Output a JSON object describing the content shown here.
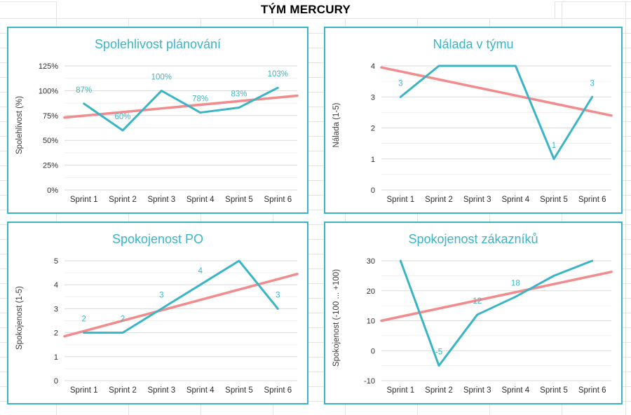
{
  "page": {
    "title": "TÝM MERCURY"
  },
  "colors": {
    "accent_teal": "#3ab5c6",
    "trend_pink": "#f28b8b",
    "grid_major": "#dadada",
    "grid_minor": "#efefef",
    "sheet_grid": "#e4e4e4"
  },
  "chart_data": [
    {
      "type": "line",
      "title": "Spolehlivost plánování",
      "ylabel": "Spolehlivost (%)",
      "categories": [
        "Sprint 1",
        "Sprint 2",
        "Sprint 3",
        "Sprint 4",
        "Sprint 5",
        "Sprint 6"
      ],
      "axis_range": [
        0,
        125
      ],
      "minor_step": 12.5,
      "yticks": [
        {
          "value": 0,
          "label": "0%"
        },
        {
          "value": 25,
          "label": "25%"
        },
        {
          "value": 50,
          "label": "50%"
        },
        {
          "value": 75,
          "label": "75%"
        },
        {
          "value": 100,
          "label": "100%"
        },
        {
          "value": 125,
          "label": "125%"
        }
      ],
      "series": [
        {
          "role": "values",
          "values": [
            87,
            60,
            100,
            78,
            83,
            103
          ],
          "labels": [
            "87%",
            "60%",
            "100%",
            "78%",
            "83%",
            "103%"
          ]
        },
        {
          "role": "trend",
          "start": 73,
          "end": 95
        }
      ],
      "legend": "none",
      "grid": "on"
    },
    {
      "type": "line",
      "title": "Nálada v týmu",
      "ylabel": "Nálada (1-5)",
      "categories": [
        "Sprint 1",
        "Sprint 2",
        "Sprint 3",
        "Sprint 4",
        "Sprint 5",
        "Sprint 6"
      ],
      "axis_range": [
        0,
        4
      ],
      "minor_step": 0.5,
      "yticks": [
        {
          "value": 0,
          "label": "0"
        },
        {
          "value": 1,
          "label": "1"
        },
        {
          "value": 2,
          "label": "2"
        },
        {
          "value": 3,
          "label": "3"
        },
        {
          "value": 4,
          "label": "4"
        }
      ],
      "series": [
        {
          "role": "values",
          "values": [
            3,
            4,
            4,
            4,
            1,
            3
          ],
          "labels": [
            "3",
            null,
            null,
            null,
            "1",
            "3"
          ]
        },
        {
          "role": "trend",
          "start": 3.95,
          "end": 2.4
        }
      ],
      "legend": "none",
      "grid": "on"
    },
    {
      "type": "line",
      "title": "Spokojenost PO",
      "ylabel": "Spokojenost (1-5)",
      "categories": [
        "Sprint 1",
        "Sprint 2",
        "Sprint 3",
        "Sprint 4",
        "Sprint 5",
        "Sprint 6"
      ],
      "axis_range": [
        0,
        5
      ],
      "minor_step": 0.5,
      "yticks": [
        {
          "value": 0,
          "label": "0"
        },
        {
          "value": 1,
          "label": "1"
        },
        {
          "value": 2,
          "label": "2"
        },
        {
          "value": 3,
          "label": "3"
        },
        {
          "value": 4,
          "label": "4"
        },
        {
          "value": 5,
          "label": "5"
        }
      ],
      "series": [
        {
          "role": "values",
          "values": [
            2,
            2,
            3,
            4,
            5,
            3
          ],
          "labels": [
            "2",
            "2",
            "3",
            "4",
            null,
            "3"
          ]
        },
        {
          "role": "trend",
          "start": 1.85,
          "end": 4.45
        }
      ],
      "legend": "none",
      "grid": "on"
    },
    {
      "type": "line",
      "title": "Spokojenost zákazníků",
      "ylabel": "Spokojenost (-100 ... +100)",
      "categories": [
        "Sprint 1",
        "Sprint 2",
        "Sprint 3",
        "Sprint 4",
        "Sprint 5",
        "Sprint 6"
      ],
      "axis_range": [
        -10,
        30
      ],
      "minor_step": 5,
      "yticks": [
        {
          "value": -10,
          "label": "-10"
        },
        {
          "value": 0,
          "label": "0"
        },
        {
          "value": 10,
          "label": "10"
        },
        {
          "value": 20,
          "label": "20"
        },
        {
          "value": 30,
          "label": "30"
        }
      ],
      "series": [
        {
          "role": "values",
          "values": [
            30,
            -5,
            12,
            18,
            25,
            30
          ],
          "labels": [
            null,
            "-5",
            "12",
            "18",
            null,
            null
          ]
        },
        {
          "role": "trend",
          "start": 10,
          "end": 26.3
        }
      ],
      "legend": "none",
      "grid": "on"
    }
  ]
}
